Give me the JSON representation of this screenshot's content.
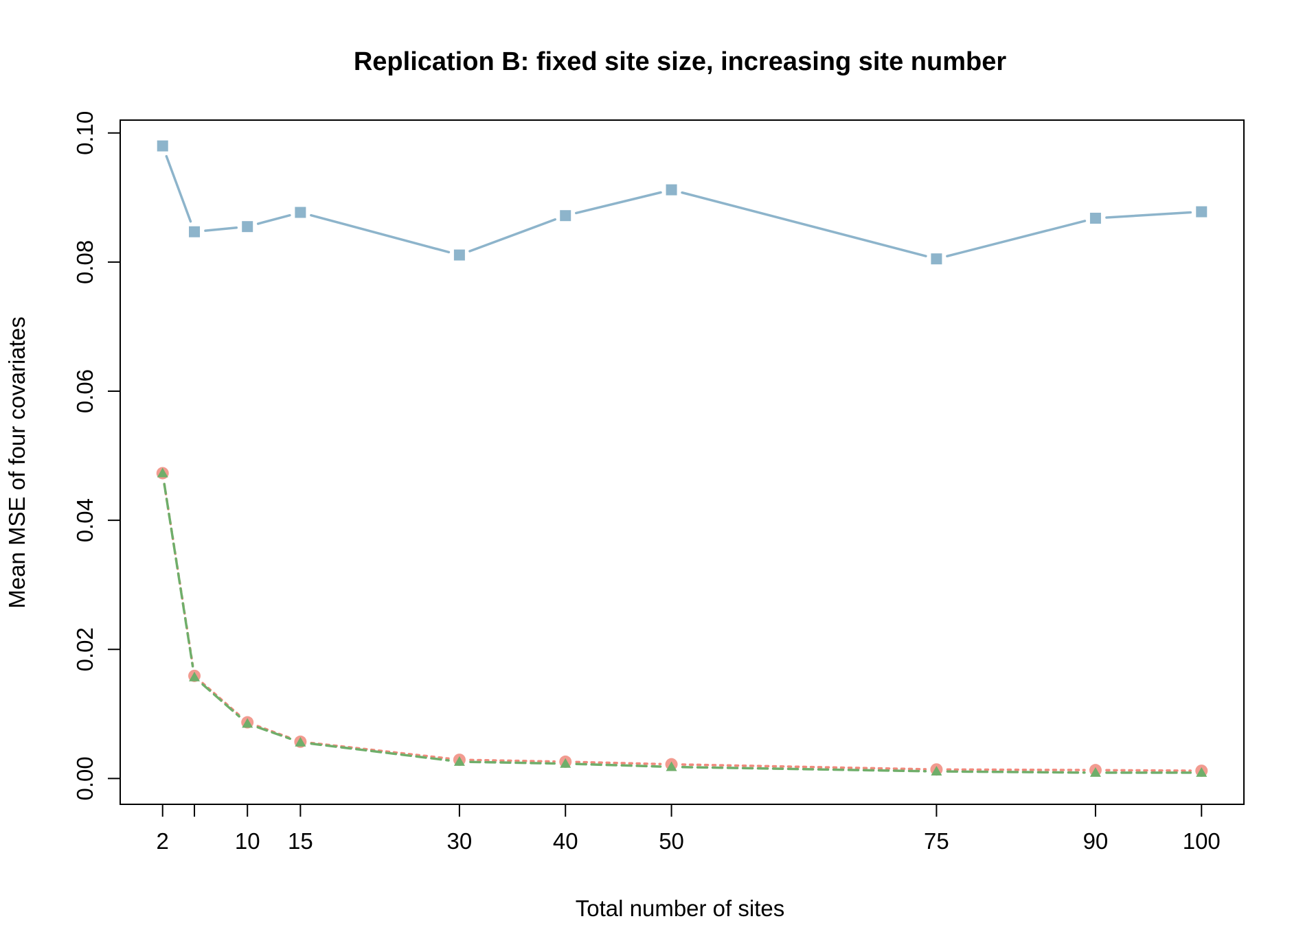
{
  "chart_data": {
    "type": "line",
    "title": "Replication B: fixed site size, increasing site number",
    "xlabel": "Total number of sites",
    "ylabel": "Mean MSE of four covariates",
    "x": [
      2,
      5,
      10,
      15,
      30,
      40,
      50,
      75,
      90,
      100
    ],
    "x_tick_labels": [
      "2",
      "",
      "10",
      "15",
      "30",
      "40",
      "50",
      "75",
      "90",
      "100"
    ],
    "xlim": [
      -2,
      104
    ],
    "ylim": [
      -0.004,
      0.102
    ],
    "y_ticks": [
      0.0,
      0.02,
      0.04,
      0.06,
      0.08,
      0.1
    ],
    "y_tick_labels": [
      "0.00",
      "0.02",
      "0.04",
      "0.06",
      "0.08",
      "0.10"
    ],
    "grid": false,
    "series": [
      {
        "color": "#8db4cb",
        "marker": "square",
        "line": "solid",
        "values": [
          0.098,
          0.0847,
          0.0855,
          0.0877,
          0.0811,
          0.0872,
          0.0912,
          0.0805,
          0.0868,
          0.0878
        ]
      },
      {
        "color": "#f08a7d",
        "marker": "circle",
        "line": "dotted",
        "values": [
          0.0473,
          0.0159,
          0.0087,
          0.0057,
          0.0029,
          0.0026,
          0.0022,
          0.0014,
          0.0013,
          0.0012
        ]
      },
      {
        "color": "#6fae6a",
        "marker": "triangle",
        "line": "dashed",
        "values": [
          0.0473,
          0.0157,
          0.0085,
          0.0056,
          0.0026,
          0.0023,
          0.0018,
          0.0011,
          0.0009,
          0.0009
        ]
      }
    ]
  }
}
